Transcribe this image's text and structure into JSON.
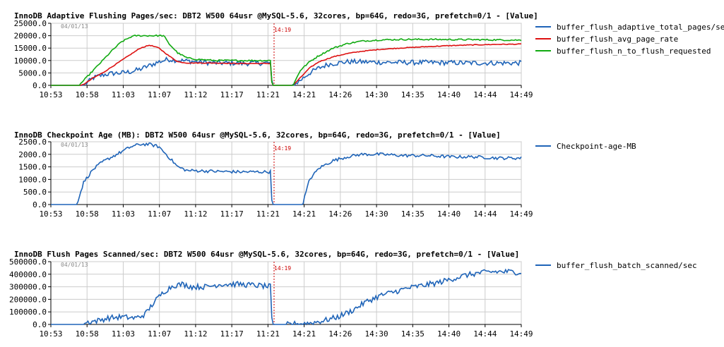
{
  "colors": {
    "grid": "#cccccc",
    "axis": "#000000",
    "frame": "#bbbbbb",
    "marker": "#cc0000",
    "blue": "#1f64b8",
    "red": "#dd1111",
    "green": "#11aa11"
  },
  "x_tick_labels": [
    "10:53",
    "10:58",
    "11:03",
    "11:07",
    "11:12",
    "11:17",
    "11:21",
    "14:21",
    "14:26",
    "14:30",
    "14:35",
    "14:40",
    "14:44",
    "14:49"
  ],
  "chart_data": [
    {
      "type": "line",
      "title": "InnoDB Adaptive Flushing Pages/sec: DBT2 W500 64usr @MySQL-5.6, 32cores, bp=64G, redo=3G, prefetch=0/1 - [Value]",
      "date_label": "04/01/13",
      "marker_label": "14:19",
      "marker_x": 0.5,
      "ylim": [
        0,
        25000
      ],
      "y_ticks": [
        "0.0",
        "5000.0",
        "10000.0",
        "15000.0",
        "20000.0",
        "25000.0"
      ],
      "grid": true,
      "legend_position": "right",
      "series": [
        {
          "name": "buffer_flush_adaptive_total_pages/sec",
          "color_key": "blue",
          "points": [
            [
              0,
              0
            ],
            [
              0.07,
              0
            ],
            [
              0.09,
              3000
            ],
            [
              0.11,
              4200
            ],
            [
              0.13,
              4800
            ],
            [
              0.15,
              5000
            ],
            [
              0.17,
              5500
            ],
            [
              0.19,
              6500
            ],
            [
              0.21,
              8000
            ],
            [
              0.23,
              9500
            ],
            [
              0.25,
              10500
            ],
            [
              0.27,
              10000
            ],
            [
              0.29,
              9800
            ],
            [
              0.31,
              9500
            ],
            [
              0.33,
              9200
            ],
            [
              0.35,
              9000
            ],
            [
              0.37,
              9000
            ],
            [
              0.39,
              9000
            ],
            [
              0.41,
              8800
            ],
            [
              0.43,
              9000
            ],
            [
              0.455,
              9000
            ],
            [
              0.468,
              9000
            ],
            [
              0.47,
              0
            ],
            [
              0.5,
              0
            ],
            [
              0.515,
              0
            ],
            [
              0.53,
              2000
            ],
            [
              0.55,
              5000
            ],
            [
              0.57,
              7000
            ],
            [
              0.59,
              8500
            ],
            [
              0.61,
              9000
            ],
            [
              0.63,
              9500
            ],
            [
              0.65,
              9500
            ],
            [
              0.67,
              9400
            ],
            [
              0.7,
              9300
            ],
            [
              0.75,
              9200
            ],
            [
              0.8,
              9200
            ],
            [
              0.85,
              9100
            ],
            [
              0.9,
              9000
            ],
            [
              0.95,
              9000
            ],
            [
              1.0,
              9000
            ]
          ],
          "noise": 1000
        },
        {
          "name": "buffer_flush_avg_page_rate",
          "color_key": "red",
          "points": [
            [
              0,
              0
            ],
            [
              0.065,
              0
            ],
            [
              0.075,
              1000
            ],
            [
              0.09,
              3000
            ],
            [
              0.11,
              5000
            ],
            [
              0.13,
              7500
            ],
            [
              0.15,
              10000
            ],
            [
              0.17,
              12500
            ],
            [
              0.19,
              15000
            ],
            [
              0.21,
              16200
            ],
            [
              0.23,
              15000
            ],
            [
              0.25,
              12000
            ],
            [
              0.27,
              9500
            ],
            [
              0.29,
              9000
            ],
            [
              0.31,
              9000
            ],
            [
              0.35,
              9000
            ],
            [
              0.4,
              8800
            ],
            [
              0.45,
              8800
            ],
            [
              0.468,
              8800
            ],
            [
              0.47,
              0
            ],
            [
              0.5,
              0
            ],
            [
              0.515,
              0
            ],
            [
              0.53,
              3000
            ],
            [
              0.55,
              7000
            ],
            [
              0.57,
              9500
            ],
            [
              0.6,
              11500
            ],
            [
              0.63,
              12800
            ],
            [
              0.66,
              13700
            ],
            [
              0.7,
              14500
            ],
            [
              0.75,
              15100
            ],
            [
              0.8,
              15600
            ],
            [
              0.85,
              16000
            ],
            [
              0.9,
              16300
            ],
            [
              0.95,
              16500
            ],
            [
              1.0,
              16600
            ]
          ],
          "noise": 150
        },
        {
          "name": "buffer_flush_n_to_flush_requested",
          "color_key": "green",
          "points": [
            [
              0,
              0
            ],
            [
              0.06,
              0
            ],
            [
              0.075,
              3000
            ],
            [
              0.09,
              6000
            ],
            [
              0.11,
              10000
            ],
            [
              0.13,
              14000
            ],
            [
              0.15,
              17500
            ],
            [
              0.17,
              19500
            ],
            [
              0.18,
              20000
            ],
            [
              0.24,
              20000
            ],
            [
              0.25,
              17000
            ],
            [
              0.27,
              13000
            ],
            [
              0.29,
              11000
            ],
            [
              0.31,
              10500
            ],
            [
              0.35,
              10000
            ],
            [
              0.4,
              10000
            ],
            [
              0.45,
              10000
            ],
            [
              0.468,
              10000
            ],
            [
              0.47,
              0
            ],
            [
              0.5,
              0
            ],
            [
              0.515,
              0
            ],
            [
              0.53,
              6000
            ],
            [
              0.55,
              9500
            ],
            [
              0.57,
              12000
            ],
            [
              0.6,
              15000
            ],
            [
              0.63,
              16800
            ],
            [
              0.66,
              17800
            ],
            [
              0.7,
              18300
            ],
            [
              0.75,
              18500
            ],
            [
              0.8,
              18500
            ],
            [
              0.9,
              18400
            ],
            [
              0.95,
              18300
            ],
            [
              1.0,
              18200
            ]
          ],
          "noise": 300
        }
      ]
    },
    {
      "type": "line",
      "title": "InnoDB Checkpoint Age (MB): DBT2 W500 64usr @MySQL-5.6, 32cores, bp=64G, redo=3G, prefetch=0/1 - [Value]",
      "date_label": "04/01/13",
      "marker_label": "14:19",
      "marker_x": 0.5,
      "ylim": [
        0,
        2500
      ],
      "y_ticks": [
        "0.0",
        "500.0",
        "1000.0",
        "1500.0",
        "2000.0",
        "2500.0"
      ],
      "grid": true,
      "legend_position": "right",
      "series": [
        {
          "name": "Checkpoint-age-MB",
          "color_key": "blue",
          "points": [
            [
              0,
              0
            ],
            [
              0.04,
              0
            ],
            [
              0.055,
              0
            ],
            [
              0.07,
              900
            ],
            [
              0.09,
              1400
            ],
            [
              0.11,
              1700
            ],
            [
              0.13,
              1900
            ],
            [
              0.15,
              2100
            ],
            [
              0.17,
              2300
            ],
            [
              0.19,
              2400
            ],
            [
              0.21,
              2400
            ],
            [
              0.23,
              2300
            ],
            [
              0.25,
              1900
            ],
            [
              0.27,
              1500
            ],
            [
              0.29,
              1350
            ],
            [
              0.31,
              1350
            ],
            [
              0.35,
              1320
            ],
            [
              0.4,
              1300
            ],
            [
              0.45,
              1300
            ],
            [
              0.468,
              1300
            ],
            [
              0.47,
              0
            ],
            [
              0.5,
              0
            ],
            [
              0.535,
              0
            ],
            [
              0.55,
              1000
            ],
            [
              0.57,
              1450
            ],
            [
              0.6,
              1750
            ],
            [
              0.63,
              1900
            ],
            [
              0.66,
              2000
            ],
            [
              0.7,
              2000
            ],
            [
              0.75,
              1950
            ],
            [
              0.8,
              1950
            ],
            [
              0.85,
              1900
            ],
            [
              0.9,
              1900
            ],
            [
              0.95,
              1850
            ],
            [
              1.0,
              1850
            ]
          ],
          "noise": 60
        }
      ]
    },
    {
      "type": "line",
      "title": "InnoDB Flush Pages Scanned/sec: DBT2 W500 64usr @MySQL-5.6, 32cores, bp=64G, redo=3G, prefetch=0/1 - [Value]",
      "date_label": "04/01/13",
      "marker_label": "14:19",
      "marker_x": 0.5,
      "ylim": [
        0,
        500000
      ],
      "y_ticks": [
        "0.0",
        "100000.0",
        "200000.0",
        "300000.0",
        "400000.0",
        "500000.0"
      ],
      "grid": true,
      "legend_position": "right",
      "series": [
        {
          "name": "buffer_flush_batch_scanned/sec",
          "color_key": "blue",
          "points": [
            [
              0,
              0
            ],
            [
              0.065,
              0
            ],
            [
              0.08,
              20000
            ],
            [
              0.1,
              30000
            ],
            [
              0.12,
              50000
            ],
            [
              0.15,
              60000
            ],
            [
              0.18,
              50000
            ],
            [
              0.2,
              80000
            ],
            [
              0.22,
              180000
            ],
            [
              0.24,
              260000
            ],
            [
              0.26,
              310000
            ],
            [
              0.28,
              320000
            ],
            [
              0.3,
              300000
            ],
            [
              0.33,
              300000
            ],
            [
              0.36,
              320000
            ],
            [
              0.4,
              320000
            ],
            [
              0.44,
              310000
            ],
            [
              0.468,
              300000
            ],
            [
              0.47,
              0
            ],
            [
              0.5,
              0
            ],
            [
              0.55,
              10000
            ],
            [
              0.58,
              30000
            ],
            [
              0.61,
              60000
            ],
            [
              0.64,
              110000
            ],
            [
              0.67,
              180000
            ],
            [
              0.7,
              230000
            ],
            [
              0.73,
              260000
            ],
            [
              0.76,
              290000
            ],
            [
              0.79,
              310000
            ],
            [
              0.82,
              330000
            ],
            [
              0.85,
              360000
            ],
            [
              0.88,
              390000
            ],
            [
              0.91,
              410000
            ],
            [
              0.94,
              420000
            ],
            [
              0.97,
              420000
            ],
            [
              1.0,
              415000
            ]
          ],
          "noise": 22000
        }
      ]
    }
  ]
}
